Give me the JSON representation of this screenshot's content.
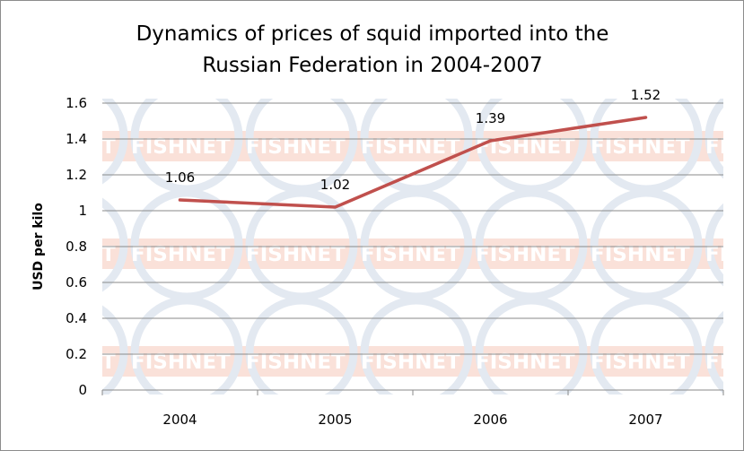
{
  "chart_data": {
    "type": "line",
    "title_lines": [
      "Dynamics of prices of squid imported into the",
      "Russian Federation in 2004-2007"
    ],
    "ylabel": "USD per kilo",
    "categories": [
      "2004",
      "2005",
      "2006",
      "2007"
    ],
    "values": [
      1.06,
      1.02,
      1.39,
      1.52
    ],
    "data_labels": [
      "1.06",
      "1.02",
      "1.39",
      "1.52"
    ],
    "yticks": [
      "0",
      "0.2",
      "0.4",
      "0.6",
      "0.8",
      "1",
      "1.2",
      "1.4",
      "1.6"
    ],
    "ylim": [
      0,
      1.6
    ],
    "grid": true,
    "line_color": "#c0504d",
    "watermark": "FISHNET"
  }
}
